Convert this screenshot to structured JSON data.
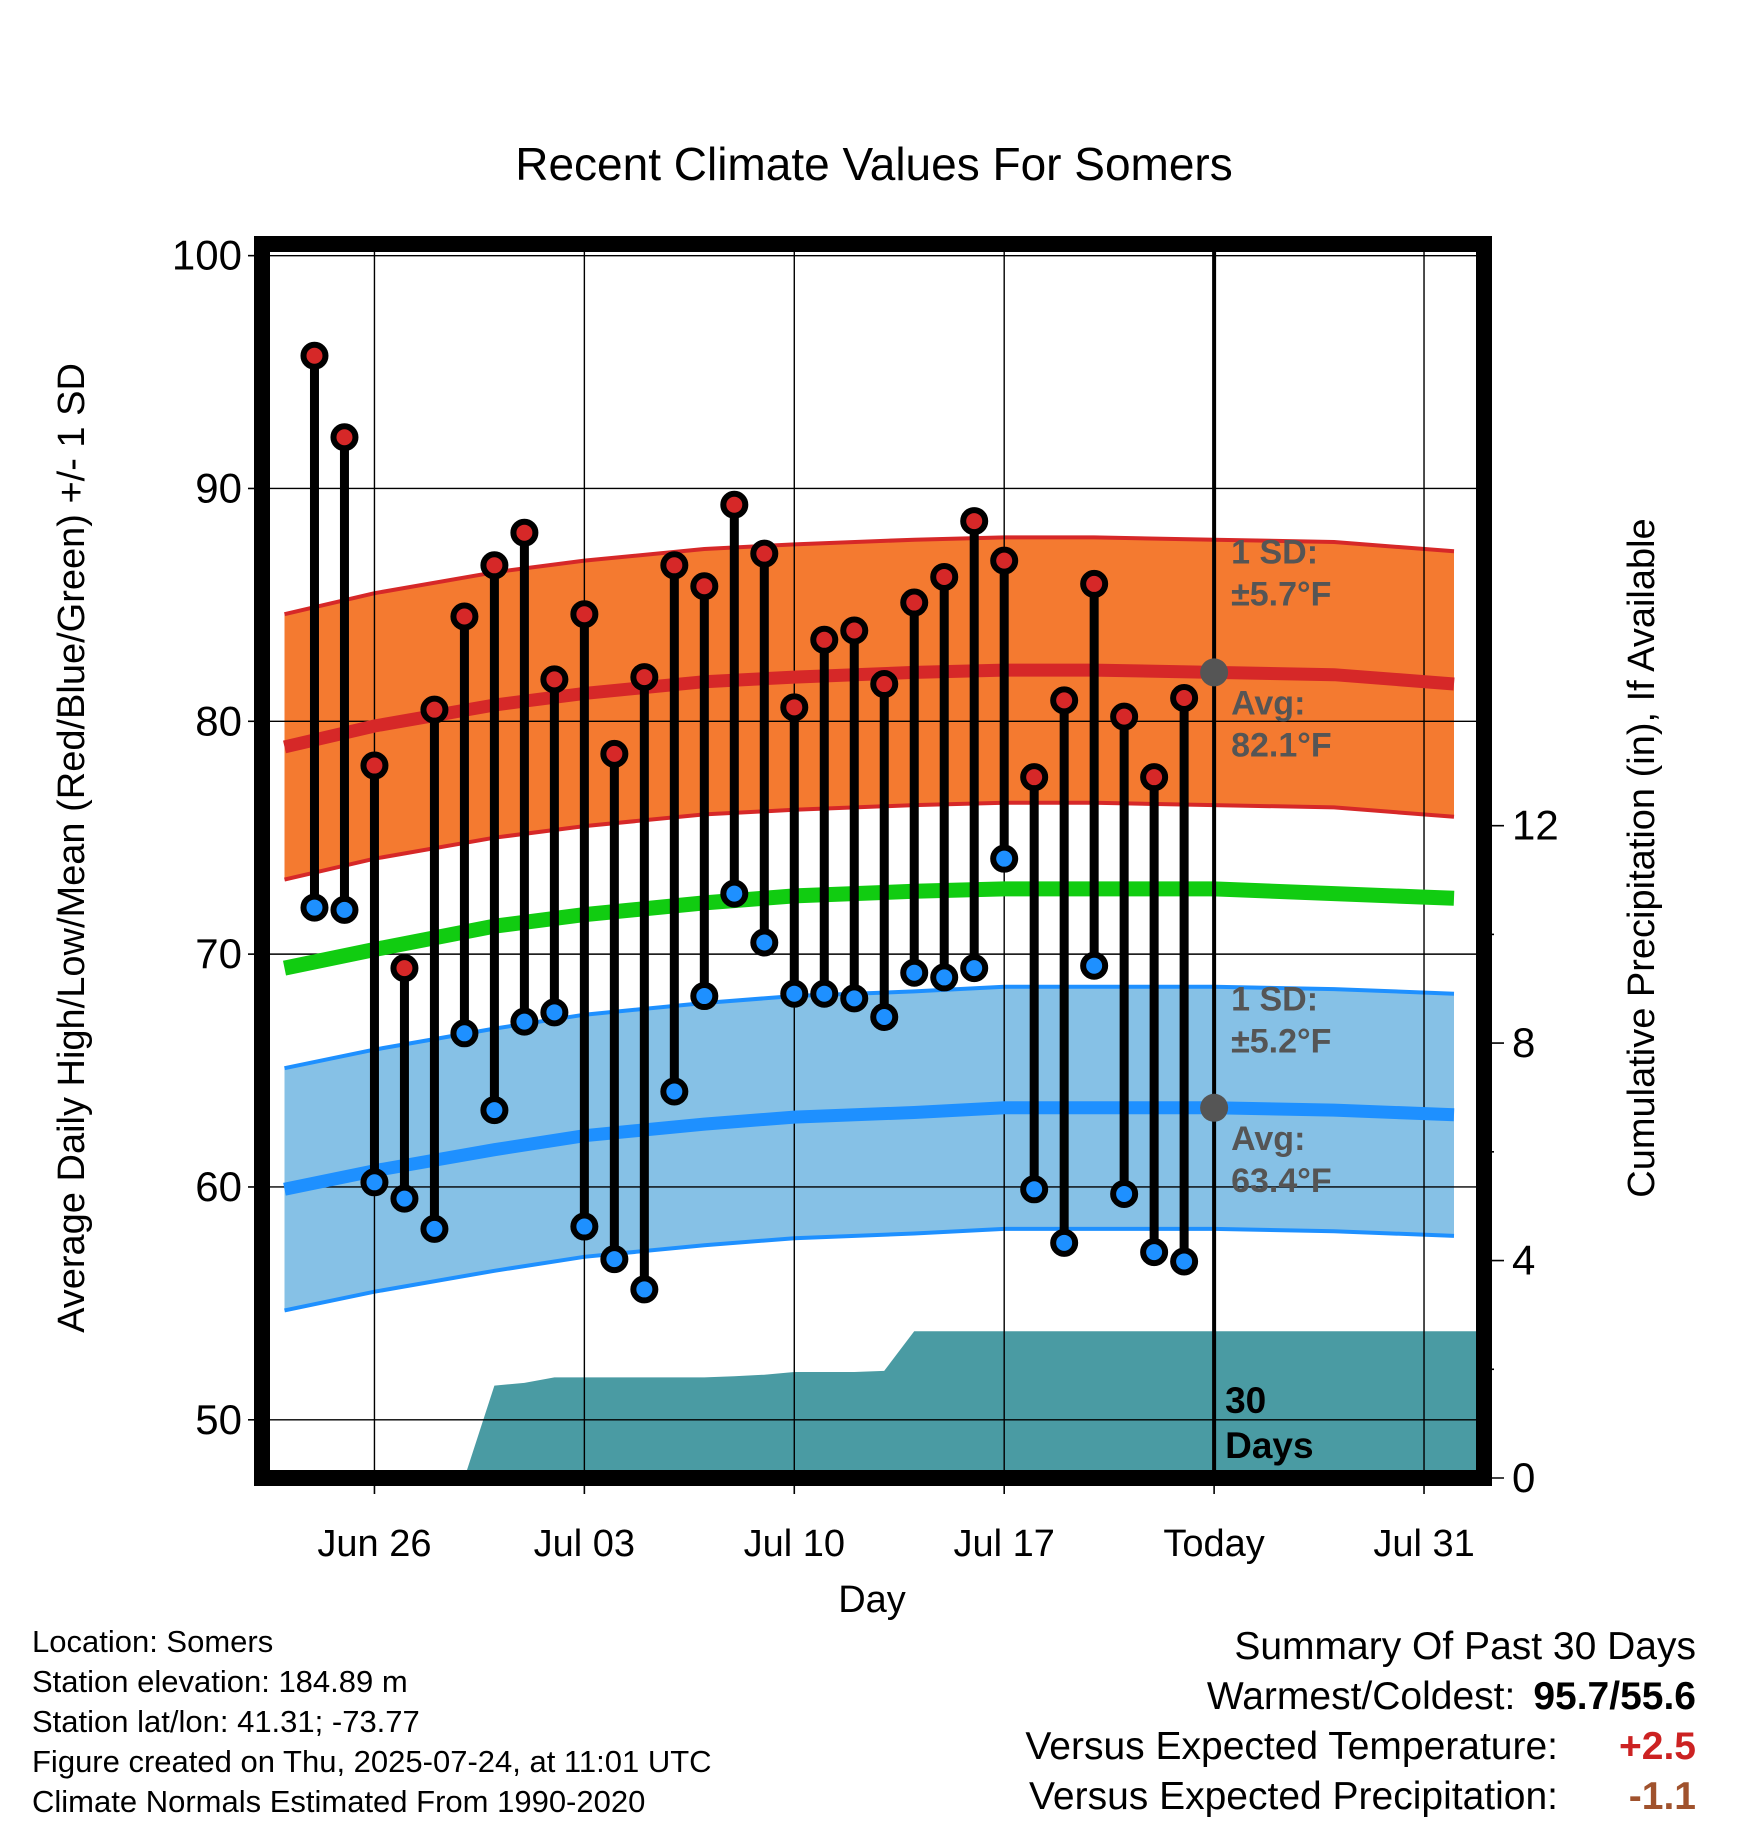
{
  "chart_data": {
    "type": "line",
    "title": "Recent Climate Values For Somers",
    "xlabel": "Day",
    "ylabel": "Average Daily High/Low/Mean (Red/Blue/Green) +/- 1 SD",
    "y2label": "Cumulative Precipitation (in), If Available",
    "ylim": [
      47.5,
      100.5
    ],
    "y_ticks": [
      50,
      60,
      70,
      80,
      90,
      100
    ],
    "y2lim": [
      0,
      22.7
    ],
    "y2_ticks": [
      0,
      4,
      8,
      12
    ],
    "x_tick_labels": [
      "Jun 26",
      "Jul 03",
      "Jul 10",
      "Jul 17",
      "Today",
      "Jul 31"
    ],
    "x_ticks": [
      "2025-06-26",
      "2025-07-03",
      "2025-07-10",
      "2025-07-17",
      "2025-07-24",
      "2025-07-31"
    ],
    "xlim": [
      "2025-06-22T18:00",
      "2025-08-02T12:00"
    ],
    "grid": true,
    "today": "2025-07-24",
    "today_label": "Today",
    "window_label": "30 Days",
    "observed": {
      "dates": [
        "2025-06-24",
        "2025-06-25",
        "2025-06-26",
        "2025-06-27",
        "2025-06-28",
        "2025-06-29",
        "2025-06-30",
        "2025-07-01",
        "2025-07-02",
        "2025-07-03",
        "2025-07-04",
        "2025-07-05",
        "2025-07-06",
        "2025-07-07",
        "2025-07-08",
        "2025-07-09",
        "2025-07-10",
        "2025-07-11",
        "2025-07-12",
        "2025-07-13",
        "2025-07-14",
        "2025-07-15",
        "2025-07-16",
        "2025-07-17",
        "2025-07-18",
        "2025-07-19",
        "2025-07-20",
        "2025-07-21",
        "2025-07-22",
        "2025-07-23"
      ],
      "high": [
        95.7,
        92.2,
        78.1,
        69.4,
        80.5,
        84.5,
        86.7,
        88.1,
        81.8,
        84.6,
        78.6,
        81.9,
        86.7,
        85.8,
        89.3,
        87.2,
        80.6,
        83.5,
        83.9,
        81.6,
        85.1,
        86.2,
        88.6,
        86.9,
        77.6,
        80.9,
        85.9,
        80.2,
        77.6,
        81.0
      ],
      "low": [
        72.0,
        71.9,
        60.2,
        59.5,
        58.2,
        66.6,
        63.3,
        67.1,
        67.5,
        58.3,
        56.9,
        55.6,
        64.1,
        68.2,
        72.6,
        70.5,
        68.3,
        68.3,
        68.1,
        67.3,
        69.2,
        69.0,
        69.4,
        74.1,
        59.9,
        57.6,
        69.5,
        59.7,
        57.2,
        56.8
      ]
    },
    "normal_high": {
      "dates": [
        "2025-06-23",
        "2025-06-26",
        "2025-06-30",
        "2025-07-03",
        "2025-07-07",
        "2025-07-10",
        "2025-07-14",
        "2025-07-17",
        "2025-07-20",
        "2025-07-24",
        "2025-07-28",
        "2025-08-01"
      ],
      "avg": [
        78.9,
        79.8,
        80.7,
        81.2,
        81.7,
        81.9,
        82.1,
        82.2,
        82.2,
        82.1,
        82.0,
        81.6
      ],
      "sd": 5.7
    },
    "normal_low": {
      "dates": [
        "2025-06-23",
        "2025-06-26",
        "2025-06-30",
        "2025-07-03",
        "2025-07-07",
        "2025-07-10",
        "2025-07-14",
        "2025-07-17",
        "2025-07-20",
        "2025-07-24",
        "2025-07-28",
        "2025-08-01"
      ],
      "avg": [
        59.9,
        60.7,
        61.6,
        62.2,
        62.7,
        63.0,
        63.2,
        63.4,
        63.4,
        63.4,
        63.3,
        63.1
      ],
      "sd": 5.2
    },
    "normal_mean": {
      "dates": [
        "2025-06-23",
        "2025-06-26",
        "2025-06-30",
        "2025-07-03",
        "2025-07-07",
        "2025-07-10",
        "2025-07-14",
        "2025-07-17",
        "2025-07-20",
        "2025-07-24",
        "2025-07-28",
        "2025-08-01"
      ],
      "values": [
        69.4,
        70.2,
        71.2,
        71.7,
        72.2,
        72.5,
        72.7,
        72.8,
        72.8,
        72.8,
        72.6,
        72.4
      ]
    },
    "precipitation": {
      "dates": [
        "2025-06-22",
        "2025-06-29",
        "2025-06-30",
        "2025-07-01",
        "2025-07-02",
        "2025-07-03",
        "2025-07-07",
        "2025-07-08",
        "2025-07-09",
        "2025-07-10",
        "2025-07-12",
        "2025-07-13",
        "2025-07-14",
        "2025-07-15",
        "2025-07-24",
        "2025-08-02"
      ],
      "values": [
        0,
        0,
        1.7,
        1.75,
        1.85,
        1.85,
        1.85,
        1.87,
        1.9,
        1.95,
        1.95,
        1.97,
        2.7,
        2.7,
        2.7,
        2.7
      ]
    },
    "annotations": {
      "high_sd_label": "1 SD:",
      "high_sd_value": "±5.7°F",
      "high_avg_label": "Avg:",
      "high_avg_value": "82.1°F",
      "low_sd_label": "1 SD:",
      "low_sd_value": "±5.2°F",
      "low_avg_label": "Avg:",
      "low_avg_value": "63.4°F"
    },
    "colors": {
      "high_band": "#f47a30",
      "high_line": "#d62828",
      "low_band": "#86c1e6",
      "low_line": "#1e90ff",
      "mean_line": "#11cc11",
      "precip": "#4a9ba3",
      "high_marker": "#d62828",
      "low_marker": "#1e90ff",
      "annotation_text": "#555555"
    }
  },
  "info": {
    "location": "Location: Somers",
    "elevation": "Station elevation: 184.89 m",
    "latlon": "Station lat/lon: 41.31; -73.77",
    "created": "Figure created on Thu, 2025-07-24, at 11:01 UTC",
    "normals": "Climate Normals Estimated From 1990-2020"
  },
  "summary": {
    "title": "Summary Of Past 30 Days",
    "warmest_label": "Warmest/Coldest:",
    "warmest_value": "95.7/55.6",
    "temp_label": "Versus Expected Temperature:",
    "temp_value": "+2.5",
    "precip_label": "Versus Expected Precipitation:",
    "precip_value": "-1.1"
  }
}
